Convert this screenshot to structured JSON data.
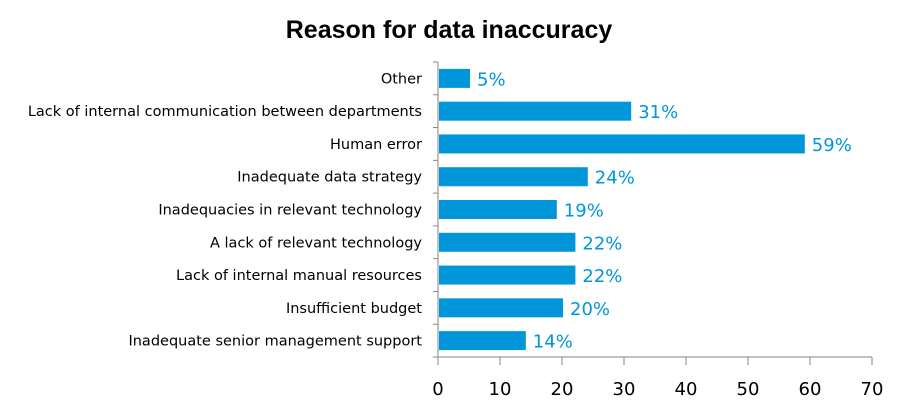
{
  "chart_data": {
    "type": "bar",
    "orientation": "horizontal",
    "title": "Reason for data inaccuracy",
    "categories": [
      "Other",
      "Lack of internal communication between departments",
      "Human error",
      "Inadequate data strategy",
      "Inadequacies in relevant technology",
      "A lack of relevant technology",
      "Lack of internal manual resources",
      "Insufficient budget",
      "Inadequate senior management support"
    ],
    "values": [
      5,
      31,
      59,
      24,
      19,
      22,
      22,
      20,
      14
    ],
    "data_labels": [
      "5%",
      "31%",
      "59%",
      "24%",
      "19%",
      "22%",
      "22%",
      "20%",
      "14%"
    ],
    "xlabel": "",
    "ylabel": "",
    "xlim": [
      0,
      70
    ],
    "xticks": [
      "0",
      "10",
      "20",
      "30",
      "40",
      "50",
      "60",
      "70"
    ],
    "grid": false,
    "legend": "none",
    "colors": {
      "bar": "#0096D9",
      "label": "#0096D9",
      "axis": "#868686"
    }
  }
}
